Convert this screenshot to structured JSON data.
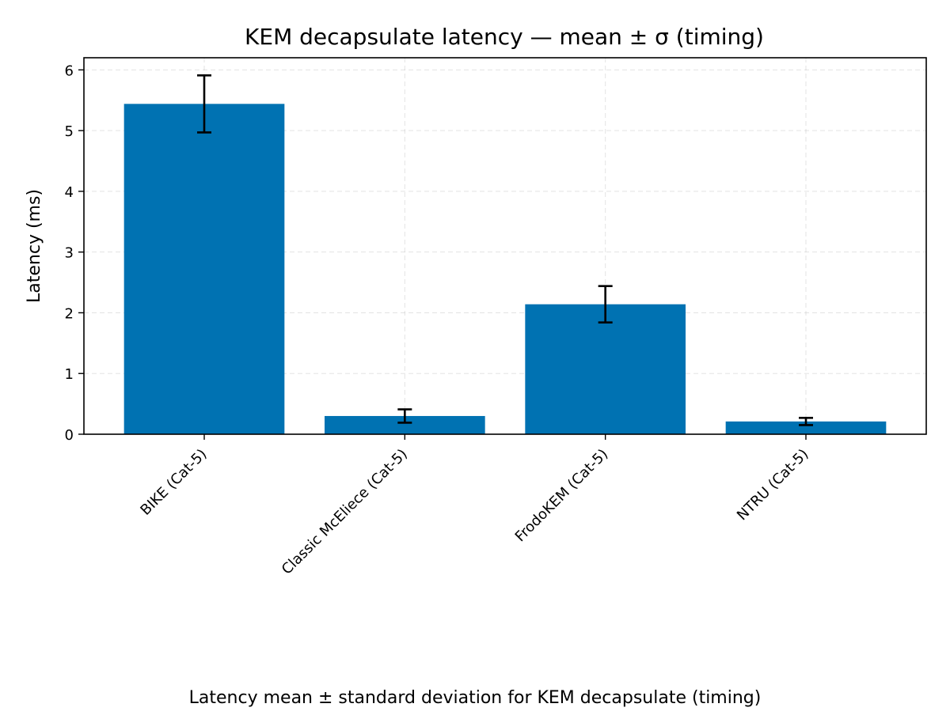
{
  "chart_data": {
    "type": "bar",
    "title": "KEM decapsulate latency — mean ± σ (timing)",
    "xlabel": "",
    "ylabel": "Latency (ms)",
    "caption": "Latency mean ± standard deviation for KEM decapsulate (timing)",
    "categories": [
      "BIKE (Cat-5)",
      "Classic McEliece (Cat-5)",
      "FrodoKEM (Cat-5)",
      "NTRU (Cat-5)"
    ],
    "values": [
      5.44,
      0.3,
      2.14,
      0.21
    ],
    "errors": [
      0.47,
      0.11,
      0.3,
      0.06
    ],
    "yticks": [
      "0",
      "1",
      "2",
      "3",
      "4",
      "5",
      "6"
    ],
    "ylim": [
      0,
      6.2
    ],
    "grid": true,
    "bar_color": "#0072b2",
    "error_color": "#000000"
  }
}
